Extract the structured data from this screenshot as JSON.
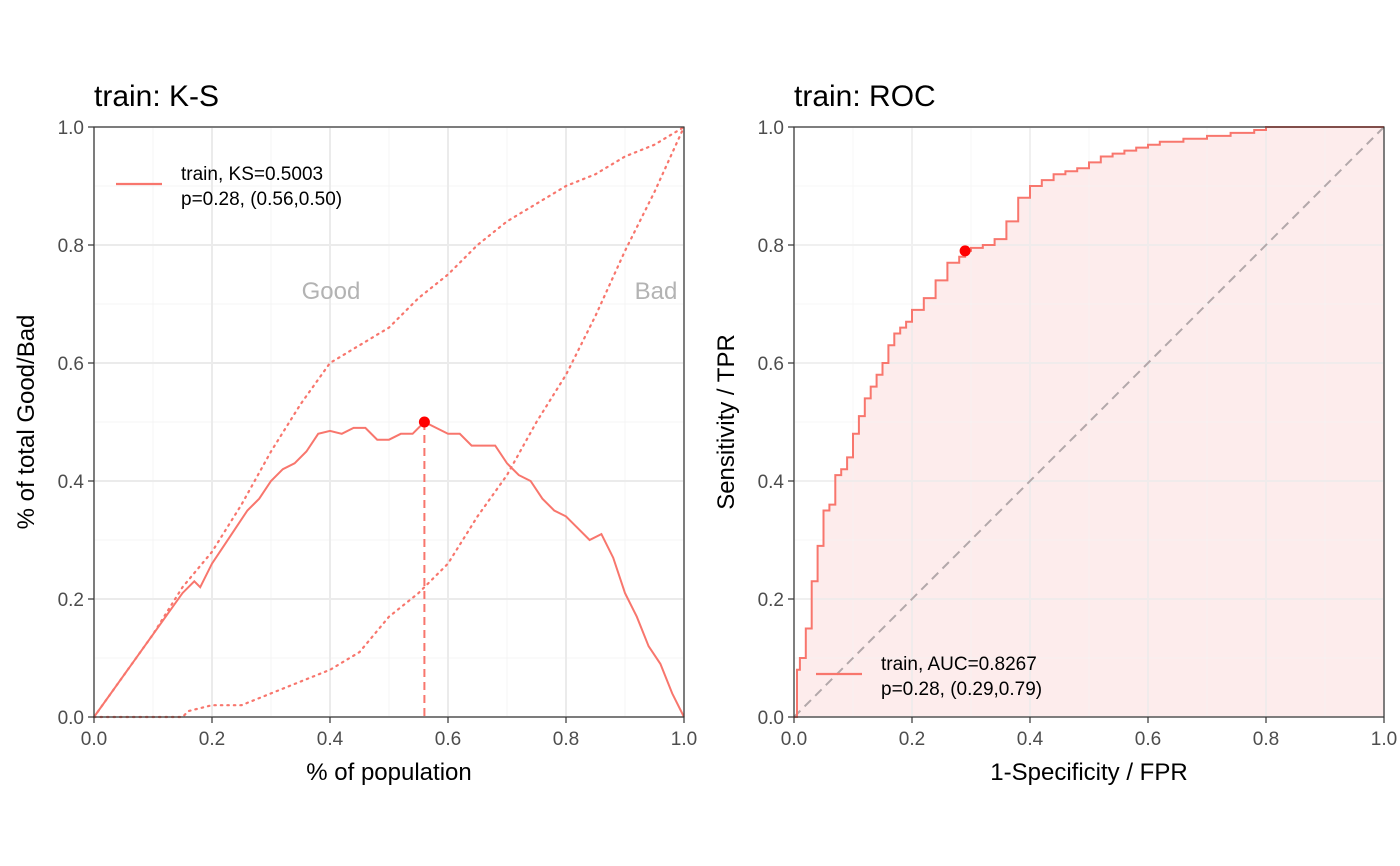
{
  "colors": {
    "series": "#F8766D",
    "optimal_point": "#FF0000",
    "grid_major": "#EBEBEB",
    "grid_minor": "#F4F4F4",
    "panel_border": "#333333",
    "tick_text": "#4D4D4D",
    "annotation": "#B3B3B3",
    "diagonal": "#B3A8AA",
    "roc_fill": "#FDECEC"
  },
  "chart_data": [
    {
      "type": "line",
      "title": "train: K-S",
      "xlabel": "% of population",
      "ylabel": "% of total Good/Bad",
      "xlim": [
        0,
        1
      ],
      "ylim": [
        0,
        1
      ],
      "x_ticks": [
        "0.0",
        "0.2",
        "0.4",
        "0.6",
        "0.8",
        "1.0"
      ],
      "y_ticks": [
        "0.0",
        "0.2",
        "0.4",
        "0.6",
        "0.8",
        "1.0"
      ],
      "grid": true,
      "legend_position": "top-left",
      "legend": {
        "line1": "train, KS=0.5003",
        "line2": "p=0.28, (0.56,0.50)"
      },
      "annotations": {
        "good": "Good",
        "bad": "Bad"
      },
      "optimal_point": {
        "x": 0.56,
        "y": 0.5
      },
      "series": [
        {
          "name": "train, KS=0.5003",
          "style": "solid",
          "x": [
            0,
            0.05,
            0.1,
            0.15,
            0.17,
            0.18,
            0.2,
            0.22,
            0.24,
            0.26,
            0.28,
            0.3,
            0.32,
            0.34,
            0.36,
            0.38,
            0.4,
            0.42,
            0.44,
            0.46,
            0.48,
            0.5,
            0.52,
            0.54,
            0.56,
            0.58,
            0.6,
            0.62,
            0.64,
            0.66,
            0.68,
            0.7,
            0.72,
            0.74,
            0.76,
            0.78,
            0.8,
            0.82,
            0.84,
            0.86,
            0.88,
            0.9,
            0.92,
            0.94,
            0.96,
            0.98,
            1.0
          ],
          "y": [
            0,
            0.07,
            0.14,
            0.21,
            0.23,
            0.22,
            0.26,
            0.29,
            0.32,
            0.35,
            0.37,
            0.4,
            0.42,
            0.43,
            0.45,
            0.48,
            0.485,
            0.48,
            0.49,
            0.49,
            0.47,
            0.47,
            0.48,
            0.48,
            0.5,
            0.49,
            0.48,
            0.48,
            0.46,
            0.46,
            0.46,
            0.43,
            0.41,
            0.4,
            0.37,
            0.35,
            0.34,
            0.32,
            0.3,
            0.31,
            0.27,
            0.21,
            0.17,
            0.12,
            0.09,
            0.04,
            0.0
          ]
        },
        {
          "name": "Good",
          "style": "dotted",
          "x": [
            0,
            0.05,
            0.1,
            0.15,
            0.2,
            0.25,
            0.3,
            0.35,
            0.4,
            0.45,
            0.5,
            0.55,
            0.6,
            0.65,
            0.7,
            0.75,
            0.8,
            0.85,
            0.9,
            0.95,
            1.0
          ],
          "y": [
            0,
            0.07,
            0.14,
            0.22,
            0.28,
            0.36,
            0.45,
            0.53,
            0.6,
            0.63,
            0.66,
            0.71,
            0.75,
            0.8,
            0.84,
            0.87,
            0.9,
            0.92,
            0.95,
            0.97,
            1.0
          ]
        },
        {
          "name": "Bad",
          "style": "dotted",
          "x": [
            0,
            0.15,
            0.16,
            0.2,
            0.25,
            0.3,
            0.35,
            0.4,
            0.45,
            0.5,
            0.55,
            0.6,
            0.65,
            0.7,
            0.75,
            0.8,
            0.85,
            0.9,
            0.95,
            1.0
          ],
          "y": [
            0,
            0,
            0.01,
            0.02,
            0.02,
            0.04,
            0.06,
            0.08,
            0.11,
            0.17,
            0.21,
            0.26,
            0.34,
            0.41,
            0.5,
            0.58,
            0.68,
            0.79,
            0.89,
            1.0
          ]
        }
      ]
    },
    {
      "type": "line",
      "title": "train: ROC",
      "xlabel": "1-Specificity / FPR",
      "ylabel": "Sensitivity / TPR",
      "xlim": [
        0,
        1
      ],
      "ylim": [
        0,
        1
      ],
      "x_ticks": [
        "0.0",
        "0.2",
        "0.4",
        "0.6",
        "0.8",
        "1.0"
      ],
      "y_ticks": [
        "0.0",
        "0.2",
        "0.4",
        "0.6",
        "0.8",
        "1.0"
      ],
      "grid": true,
      "legend_position": "bottom-left",
      "legend": {
        "line1": "train, AUC=0.8267",
        "line2": "p=0.28, (0.29,0.79)"
      },
      "optimal_point": {
        "x": 0.29,
        "y": 0.79
      },
      "diagonal": true,
      "series": [
        {
          "name": "train, AUC=0.8267",
          "style": "solid",
          "x": [
            0,
            0.005,
            0.01,
            0.02,
            0.03,
            0.04,
            0.05,
            0.06,
            0.07,
            0.08,
            0.09,
            0.1,
            0.11,
            0.12,
            0.13,
            0.14,
            0.15,
            0.16,
            0.17,
            0.18,
            0.19,
            0.2,
            0.22,
            0.24,
            0.26,
            0.28,
            0.29,
            0.3,
            0.32,
            0.34,
            0.36,
            0.38,
            0.4,
            0.42,
            0.44,
            0.46,
            0.48,
            0.5,
            0.52,
            0.54,
            0.56,
            0.58,
            0.6,
            0.62,
            0.66,
            0.7,
            0.74,
            0.78,
            0.8,
            0.84,
            1.0
          ],
          "y": [
            0,
            0.08,
            0.1,
            0.15,
            0.23,
            0.29,
            0.35,
            0.36,
            0.41,
            0.42,
            0.44,
            0.48,
            0.51,
            0.54,
            0.56,
            0.58,
            0.6,
            0.63,
            0.65,
            0.66,
            0.67,
            0.69,
            0.71,
            0.74,
            0.77,
            0.78,
            0.79,
            0.795,
            0.8,
            0.81,
            0.84,
            0.88,
            0.9,
            0.91,
            0.92,
            0.925,
            0.93,
            0.94,
            0.95,
            0.955,
            0.96,
            0.965,
            0.97,
            0.975,
            0.98,
            0.985,
            0.99,
            0.995,
            1.0,
            1.0,
            1.0
          ]
        }
      ]
    }
  ]
}
